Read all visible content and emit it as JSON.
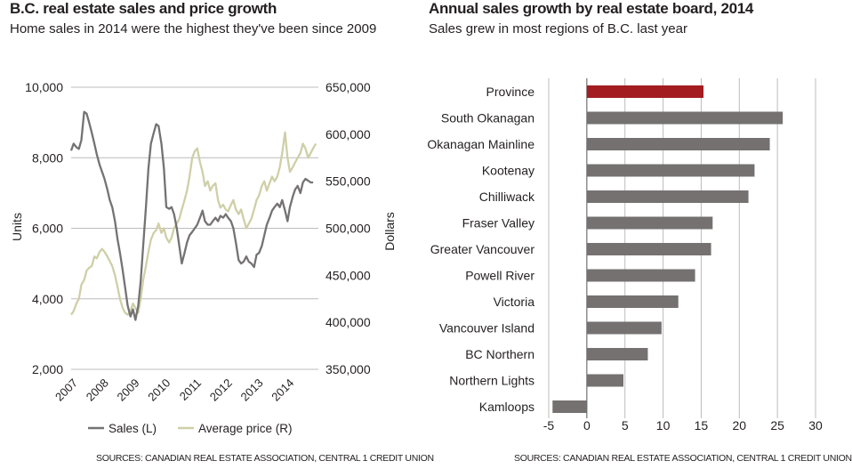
{
  "left": {
    "title": "B.C. real estate sales and price growth",
    "subtitle": "Home sales in 2014 were the highest they've been since 2009",
    "source": "SOURCES: CANADIAN REAL ESTATE ASSOCIATION, CENTRAL 1 CREDIT UNION"
  },
  "right": {
    "title": "Annual sales growth by real estate board, 2014",
    "subtitle": "Sales grew in most regions of B.C. last year",
    "source": "SOURCES: CANADIAN REAL ESTATE ASSOCIATION, CENTRAL 1 CREDIT UNION"
  },
  "colors": {
    "sales": "#757272",
    "price": "#cfcfa8",
    "bar": "#747170",
    "highlight": "#a31c20",
    "grid": "#bdbcbc"
  },
  "chart_data": [
    {
      "type": "line",
      "title": "B.C. real estate sales and price growth",
      "ylabel_left": "Units",
      "ylabel_right": "Dollars",
      "ylim_left": [
        2000,
        10000
      ],
      "ylim_right": [
        350000,
        650000
      ],
      "yticks_left": [
        "10,000",
        "8,000",
        "6,000",
        "4,000",
        "2,000"
      ],
      "yticks_right": [
        "650,000",
        "600,000",
        "550,000",
        "500,000",
        "450,000",
        "400,000",
        "350,000"
      ],
      "x_tick_labels": [
        "2007",
        "2008",
        "2009",
        "2010",
        "2011",
        "2012",
        "2013",
        "2014"
      ],
      "xlim": [
        2007.0,
        2015.0
      ],
      "grid": true,
      "legend": [
        "Sales (L)",
        "Average price (R)"
      ],
      "series": [
        {
          "name": "Sales (L)",
          "axis": "left",
          "x": [
            2007.0,
            2007.08,
            2007.17,
            2007.25,
            2007.33,
            2007.42,
            2007.5,
            2007.58,
            2007.67,
            2007.75,
            2007.83,
            2007.92,
            2008.0,
            2008.08,
            2008.17,
            2008.25,
            2008.33,
            2008.42,
            2008.5,
            2008.58,
            2008.67,
            2008.75,
            2008.83,
            2008.92,
            2009.0,
            2009.08,
            2009.17,
            2009.25,
            2009.33,
            2009.42,
            2009.5,
            2009.58,
            2009.67,
            2009.75,
            2009.83,
            2009.92,
            2010.0,
            2010.08,
            2010.17,
            2010.25,
            2010.33,
            2010.42,
            2010.5,
            2010.58,
            2010.67,
            2010.75,
            2010.83,
            2010.92,
            2011.0,
            2011.08,
            2011.17,
            2011.25,
            2011.33,
            2011.42,
            2011.5,
            2011.58,
            2011.67,
            2011.75,
            2011.83,
            2011.92,
            2012.0,
            2012.08,
            2012.17,
            2012.25,
            2012.33,
            2012.42,
            2012.5,
            2012.58,
            2012.67,
            2012.75,
            2012.83,
            2012.92,
            2013.0,
            2013.08,
            2013.17,
            2013.25,
            2013.33,
            2013.42,
            2013.5,
            2013.58,
            2013.67,
            2013.75,
            2013.83,
            2013.92,
            2014.0,
            2014.08,
            2014.17,
            2014.25,
            2014.33,
            2014.42,
            2014.5,
            2014.58,
            2014.67,
            2014.75,
            2014.83
          ],
          "values": [
            8200,
            8400,
            8300,
            8250,
            8500,
            9300,
            9250,
            9000,
            8700,
            8400,
            8100,
            7800,
            7600,
            7400,
            7100,
            6800,
            6600,
            6200,
            5700,
            5300,
            4800,
            4300,
            3800,
            3500,
            3700,
            3400,
            3800,
            4500,
            5500,
            6600,
            7700,
            8400,
            8700,
            8950,
            8900,
            8400,
            7700,
            6600,
            6550,
            6600,
            6400,
            6000,
            5500,
            5000,
            5300,
            5600,
            5800,
            5900,
            6000,
            6100,
            6300,
            6500,
            6200,
            6100,
            6100,
            6200,
            6300,
            6200,
            6350,
            6300,
            6400,
            6300,
            6200,
            6000,
            5600,
            5100,
            5000,
            5050,
            5200,
            5050,
            5000,
            4900,
            5250,
            5300,
            5500,
            5800,
            6100,
            6300,
            6500,
            6600,
            6700,
            6600,
            6800,
            6500,
            6200,
            6600,
            6900,
            7100,
            7200,
            7000,
            7300,
            7400,
            7350,
            7300,
            7300
          ]
        },
        {
          "name": "Average price (R)",
          "axis": "right",
          "x": [
            2007.0,
            2007.08,
            2007.17,
            2007.25,
            2007.33,
            2007.42,
            2007.5,
            2007.58,
            2007.67,
            2007.75,
            2007.83,
            2007.92,
            2008.0,
            2008.08,
            2008.17,
            2008.25,
            2008.33,
            2008.42,
            2008.5,
            2008.58,
            2008.67,
            2008.75,
            2008.83,
            2008.92,
            2009.0,
            2009.08,
            2009.17,
            2009.25,
            2009.33,
            2009.42,
            2009.5,
            2009.58,
            2009.67,
            2009.75,
            2009.83,
            2009.92,
            2010.0,
            2010.08,
            2010.17,
            2010.25,
            2010.33,
            2010.42,
            2010.5,
            2010.58,
            2010.67,
            2010.75,
            2010.83,
            2010.92,
            2011.0,
            2011.08,
            2011.17,
            2011.25,
            2011.33,
            2011.42,
            2011.5,
            2011.58,
            2011.67,
            2011.75,
            2011.83,
            2011.92,
            2012.0,
            2012.08,
            2012.17,
            2012.25,
            2012.33,
            2012.42,
            2012.5,
            2012.58,
            2012.67,
            2012.75,
            2012.83,
            2012.92,
            2013.0,
            2013.08,
            2013.17,
            2013.25,
            2013.33,
            2013.42,
            2013.5,
            2013.58,
            2013.67,
            2013.75,
            2013.83,
            2013.92,
            2014.0,
            2014.08,
            2014.17,
            2014.25,
            2014.33,
            2014.42,
            2014.5,
            2014.58,
            2014.67,
            2014.75,
            2014.83,
            2014.92
          ],
          "values": [
            408000,
            412000,
            420000,
            425000,
            440000,
            445000,
            455000,
            458000,
            460000,
            470000,
            468000,
            475000,
            478000,
            475000,
            470000,
            465000,
            460000,
            450000,
            438000,
            425000,
            415000,
            410000,
            408000,
            412000,
            420000,
            415000,
            410000,
            425000,
            445000,
            460000,
            475000,
            488000,
            495000,
            498000,
            505000,
            495000,
            500000,
            490000,
            485000,
            490000,
            500000,
            505000,
            510000,
            520000,
            530000,
            540000,
            555000,
            575000,
            582000,
            585000,
            570000,
            560000,
            545000,
            550000,
            540000,
            545000,
            548000,
            530000,
            522000,
            525000,
            520000,
            518000,
            525000,
            530000,
            520000,
            515000,
            520000,
            510000,
            500000,
            505000,
            510000,
            520000,
            530000,
            535000,
            545000,
            550000,
            540000,
            548000,
            555000,
            550000,
            555000,
            565000,
            580000,
            602000,
            575000,
            560000,
            565000,
            570000,
            575000,
            580000,
            590000,
            585000,
            575000,
            580000,
            585000,
            590000
          ]
        }
      ]
    },
    {
      "type": "bar",
      "orientation": "horizontal",
      "title": "Annual sales growth by real estate board, 2014",
      "categories": [
        "Province",
        "South Okanagan",
        "Okanagan Mainline",
        "Kootenay",
        "Chilliwack",
        "Fraser Valley",
        "Greater Vancouver",
        "Powell River",
        "Victoria",
        "Vancouver Island",
        "BC Northern",
        "Northern Lights",
        "Kamloops"
      ],
      "values": [
        15.3,
        25.7,
        24.0,
        22.0,
        21.2,
        16.5,
        16.3,
        14.2,
        12.0,
        9.8,
        8.0,
        4.8,
        -4.5
      ],
      "highlight": "Province",
      "xlim": [
        -5,
        30
      ],
      "x_tick_labels": [
        "-5",
        "0",
        "5",
        "10",
        "15",
        "20",
        "25",
        "30"
      ],
      "grid": true
    }
  ]
}
